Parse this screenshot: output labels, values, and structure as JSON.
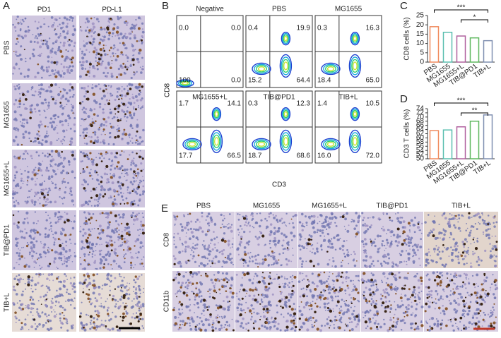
{
  "panel_labels": [
    "A",
    "B",
    "C",
    "D",
    "E"
  ],
  "panel_a": {
    "columns": [
      "PD1",
      "PD-L1"
    ],
    "rows": [
      "PBS",
      "MG1655",
      "MG1655+L",
      "TIB@PD1",
      "TIB+L"
    ]
  },
  "panel_b": {
    "y_axis_label": "CD8",
    "x_axis_label": "CD3",
    "plots": [
      {
        "title": "Negative",
        "quadrants": [
          "0.0",
          "0.0",
          "100",
          "0.0"
        ]
      },
      {
        "title": "PBS",
        "quadrants": [
          "0.4",
          "19.9",
          "15.2",
          "64.4"
        ]
      },
      {
        "title": "MG1655",
        "quadrants": [
          "0.3",
          "16.3",
          "18.4",
          "65.0"
        ]
      },
      {
        "title": "MG1655+L",
        "quadrants": [
          "1.7",
          "14.1",
          "17.7",
          "66.5"
        ]
      },
      {
        "title": "TIB@PD1",
        "quadrants": [
          "0.3",
          "12.3",
          "18.7",
          "68.6"
        ]
      },
      {
        "title": "TIB+L",
        "quadrants": [
          "1.4",
          "10.5",
          "16.0",
          "72.0"
        ]
      }
    ]
  },
  "panel_e": {
    "columns": [
      "PBS",
      "MG1655",
      "MG1655+L",
      "TIB@PD1",
      "TIB+L"
    ],
    "rows": [
      "CD8",
      "CD11b"
    ]
  },
  "chart_data": [
    {
      "type": "bar",
      "y_axis_label": "CD8 cells (%)",
      "categories": [
        "PBS",
        "MG1655",
        "MG1655+L",
        "TIB@PD1",
        "TIB+L"
      ],
      "values": [
        19,
        16,
        14,
        13,
        11.5
      ],
      "colors": [
        "#f08a5d",
        "#5bbfb0",
        "#b0609e",
        "#5fb85f",
        "#7f8fb0"
      ],
      "ylim": [
        0,
        25
      ],
      "yticks": [
        0,
        5,
        10,
        15,
        20,
        25
      ],
      "significance": [
        "***",
        "*"
      ]
    },
    {
      "type": "bar",
      "y_axis_label": "CD3 T cells (%)",
      "categories": [
        "PBS",
        "MG1655",
        "MG1655+L",
        "TIB@PD1",
        "TIB+L"
      ],
      "values": [
        63.5,
        63.8,
        65.3,
        68,
        71
      ],
      "colors": [
        "#f08a5d",
        "#5bbfb0",
        "#b0609e",
        "#5fb85f",
        "#7f8fb0"
      ],
      "ylim": [
        50,
        74
      ],
      "yticks": [
        50,
        52,
        54,
        56,
        58,
        60,
        62,
        64,
        66,
        68,
        70,
        72,
        74
      ],
      "significance": [
        "***",
        "**"
      ]
    }
  ]
}
